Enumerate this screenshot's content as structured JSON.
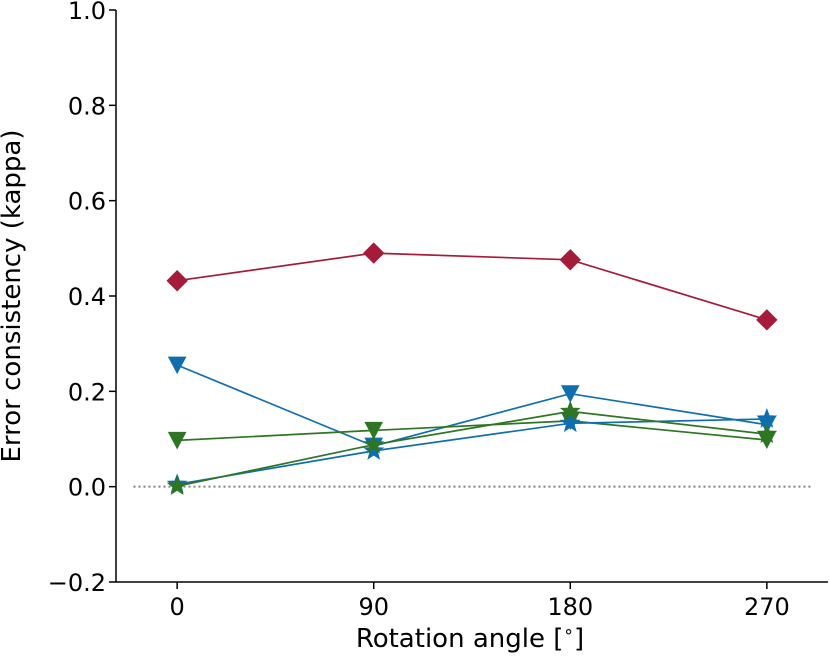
{
  "chart_data": {
    "type": "line",
    "title": "",
    "xlabel": "Rotation angle [$^\\circ$]",
    "xlabel_text": "Rotation angle [",
    "xlabel_degree": "∘",
    "xlabel_close": "]",
    "ylabel": "Error consistency (kappa)",
    "x": [
      0,
      90,
      180,
      270
    ],
    "xticks": [
      "0",
      "90",
      "180",
      "270"
    ],
    "yticks": [
      "−0.2",
      "0.0",
      "0.2",
      "0.4",
      "0.6",
      "0.8",
      "1.0"
    ],
    "ytick_values": [
      -0.2,
      0.0,
      0.2,
      0.4,
      0.6,
      0.8,
      1.0
    ],
    "xlim": [
      -28,
      298
    ],
    "ylim": [
      -0.2,
      1.0
    ],
    "reference_line": {
      "y": 0.0,
      "style": "dotted",
      "color": "#808080"
    },
    "series": [
      {
        "name": "red-diamond",
        "color": "#a51c3a",
        "marker": "diamond",
        "values": [
          0.432,
          0.49,
          0.476,
          0.35
        ]
      },
      {
        "name": "blue-triangle",
        "color": "#0f6fae",
        "marker": "triangle-down",
        "values": [
          0.255,
          0.085,
          0.195,
          0.13
        ]
      },
      {
        "name": "green-triangle",
        "color": "#2e7524",
        "marker": "triangle-down",
        "values": [
          0.097,
          0.118,
          0.138,
          0.098
        ]
      },
      {
        "name": "blue-star",
        "color": "#0f6fae",
        "marker": "star",
        "values": [
          0.005,
          0.075,
          0.133,
          0.142
        ]
      },
      {
        "name": "green-star",
        "color": "#2e7524",
        "marker": "star",
        "values": [
          0.001,
          0.088,
          0.158,
          0.11
        ]
      }
    ]
  }
}
